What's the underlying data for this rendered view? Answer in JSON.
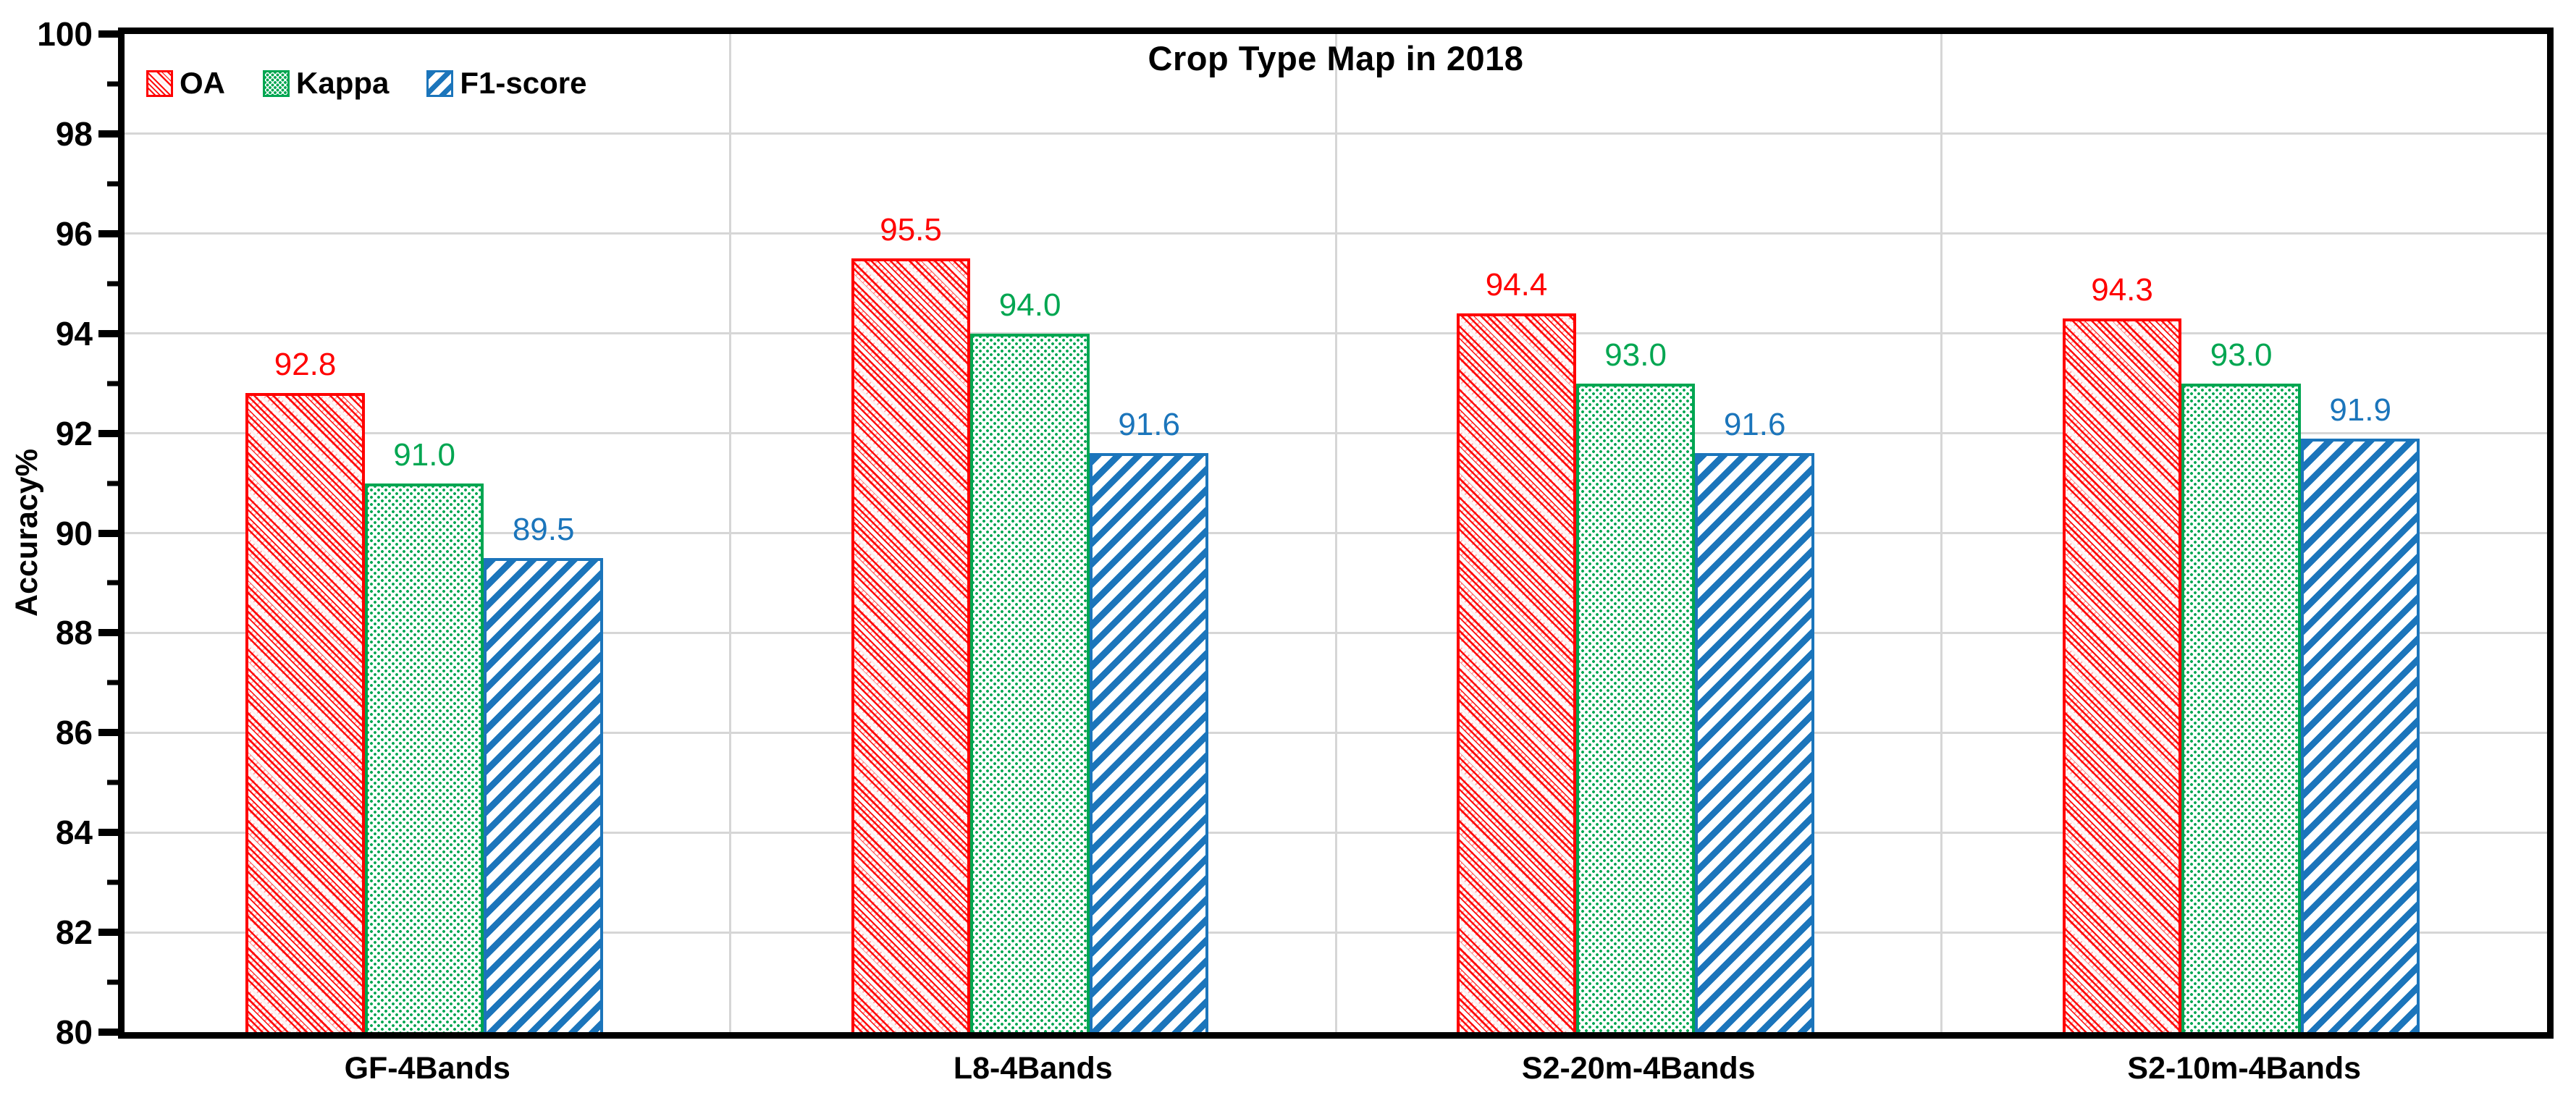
{
  "chart_data": {
    "type": "bar",
    "title": "Crop Type Map in 2018",
    "ylabel": "Accuracy%",
    "ylim": [
      80,
      100
    ],
    "yticks_major": [
      80,
      82,
      84,
      86,
      88,
      90,
      92,
      94,
      96,
      98,
      100
    ],
    "yticks_minor": [
      81,
      83,
      85,
      87,
      89,
      91,
      93,
      95,
      97,
      99
    ],
    "grid": "horizontal-major-and-vertical-category-dividers",
    "legend_position": "top-left-inside",
    "categories": [
      "GF-4Bands",
      "L8-4Bands",
      "S2-20m-4Bands",
      "S2-10m-4Bands"
    ],
    "series": [
      {
        "key": "oa",
        "name": "OA",
        "color": "#ff0000",
        "pattern": "diagonal-down-hatch",
        "values": [
          92.8,
          95.5,
          94.4,
          94.3
        ],
        "labels": [
          "92.8",
          "95.5",
          "94.4",
          "94.3"
        ]
      },
      {
        "key": "kappa",
        "name": "Kappa",
        "color": "#00a651",
        "pattern": "dot-grid",
        "values": [
          91.0,
          94.0,
          93.0,
          93.0
        ],
        "labels": [
          "91.0",
          "94.0",
          "93.0",
          "93.0"
        ]
      },
      {
        "key": "f1",
        "name": "F1-score",
        "color": "#1b75bb",
        "pattern": "diagonal-up-stripes",
        "values": [
          89.5,
          91.6,
          91.6,
          91.9
        ],
        "labels": [
          "89.5",
          "91.6",
          "91.6",
          "91.9"
        ]
      }
    ],
    "layout": {
      "group_start_frac": 0.2,
      "bar_width_frac": 0.1967
    }
  }
}
